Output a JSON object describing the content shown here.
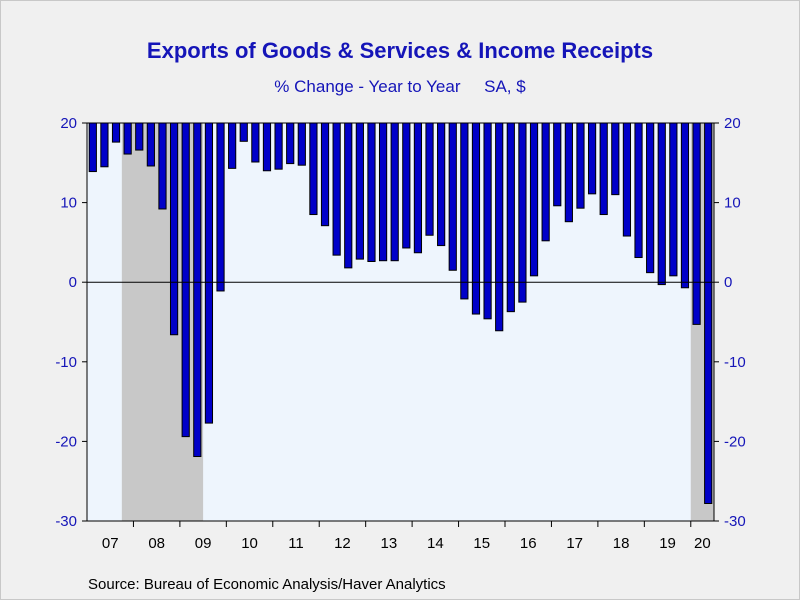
{
  "chart_data": {
    "type": "bar",
    "title": "Exports of Goods & Services & Income Receipts",
    "subtitle": "% Change - Year to Year     SA, $",
    "source": "Source:  Bureau of Economic Analysis/Haver Analytics",
    "ylim": [
      -30,
      20
    ],
    "yticks": [
      -30,
      -20,
      -10,
      0,
      10,
      20
    ],
    "x_labels": [
      "07",
      "08",
      "09",
      "10",
      "11",
      "12",
      "13",
      "14",
      "15",
      "16",
      "17",
      "18",
      "19",
      "20"
    ],
    "x_start_year": 2007,
    "periods_per_year": 4,
    "values": [
      13.9,
      14.5,
      17.6,
      16.1,
      16.6,
      14.6,
      9.2,
      -6.6,
      -19.4,
      -21.9,
      -17.7,
      -1.1,
      14.3,
      17.7,
      15.1,
      14.0,
      14.2,
      14.9,
      14.7,
      8.5,
      7.1,
      3.4,
      1.8,
      2.9,
      2.6,
      2.7,
      2.7,
      4.3,
      3.7,
      5.9,
      4.6,
      1.5,
      -2.1,
      -4.0,
      -4.6,
      -6.1,
      -3.7,
      -2.5,
      0.8,
      5.2,
      9.6,
      7.6,
      9.3,
      11.1,
      8.5,
      11.0,
      5.8,
      3.1,
      1.2,
      -0.3,
      0.8,
      -0.7,
      -5.3,
      -27.8
    ],
    "recessions": [
      {
        "start": "2007Q4",
        "end": "2009Q2"
      },
      {
        "start": "2020Q1",
        "end": "2020Q2"
      }
    ],
    "colors": {
      "bar": "#0000c8",
      "bar_edge": "#000000",
      "plot_background": "#eef5fd",
      "recession": "#c8c8c8",
      "text": "#1515b8"
    },
    "grid": false,
    "legend": "none"
  }
}
